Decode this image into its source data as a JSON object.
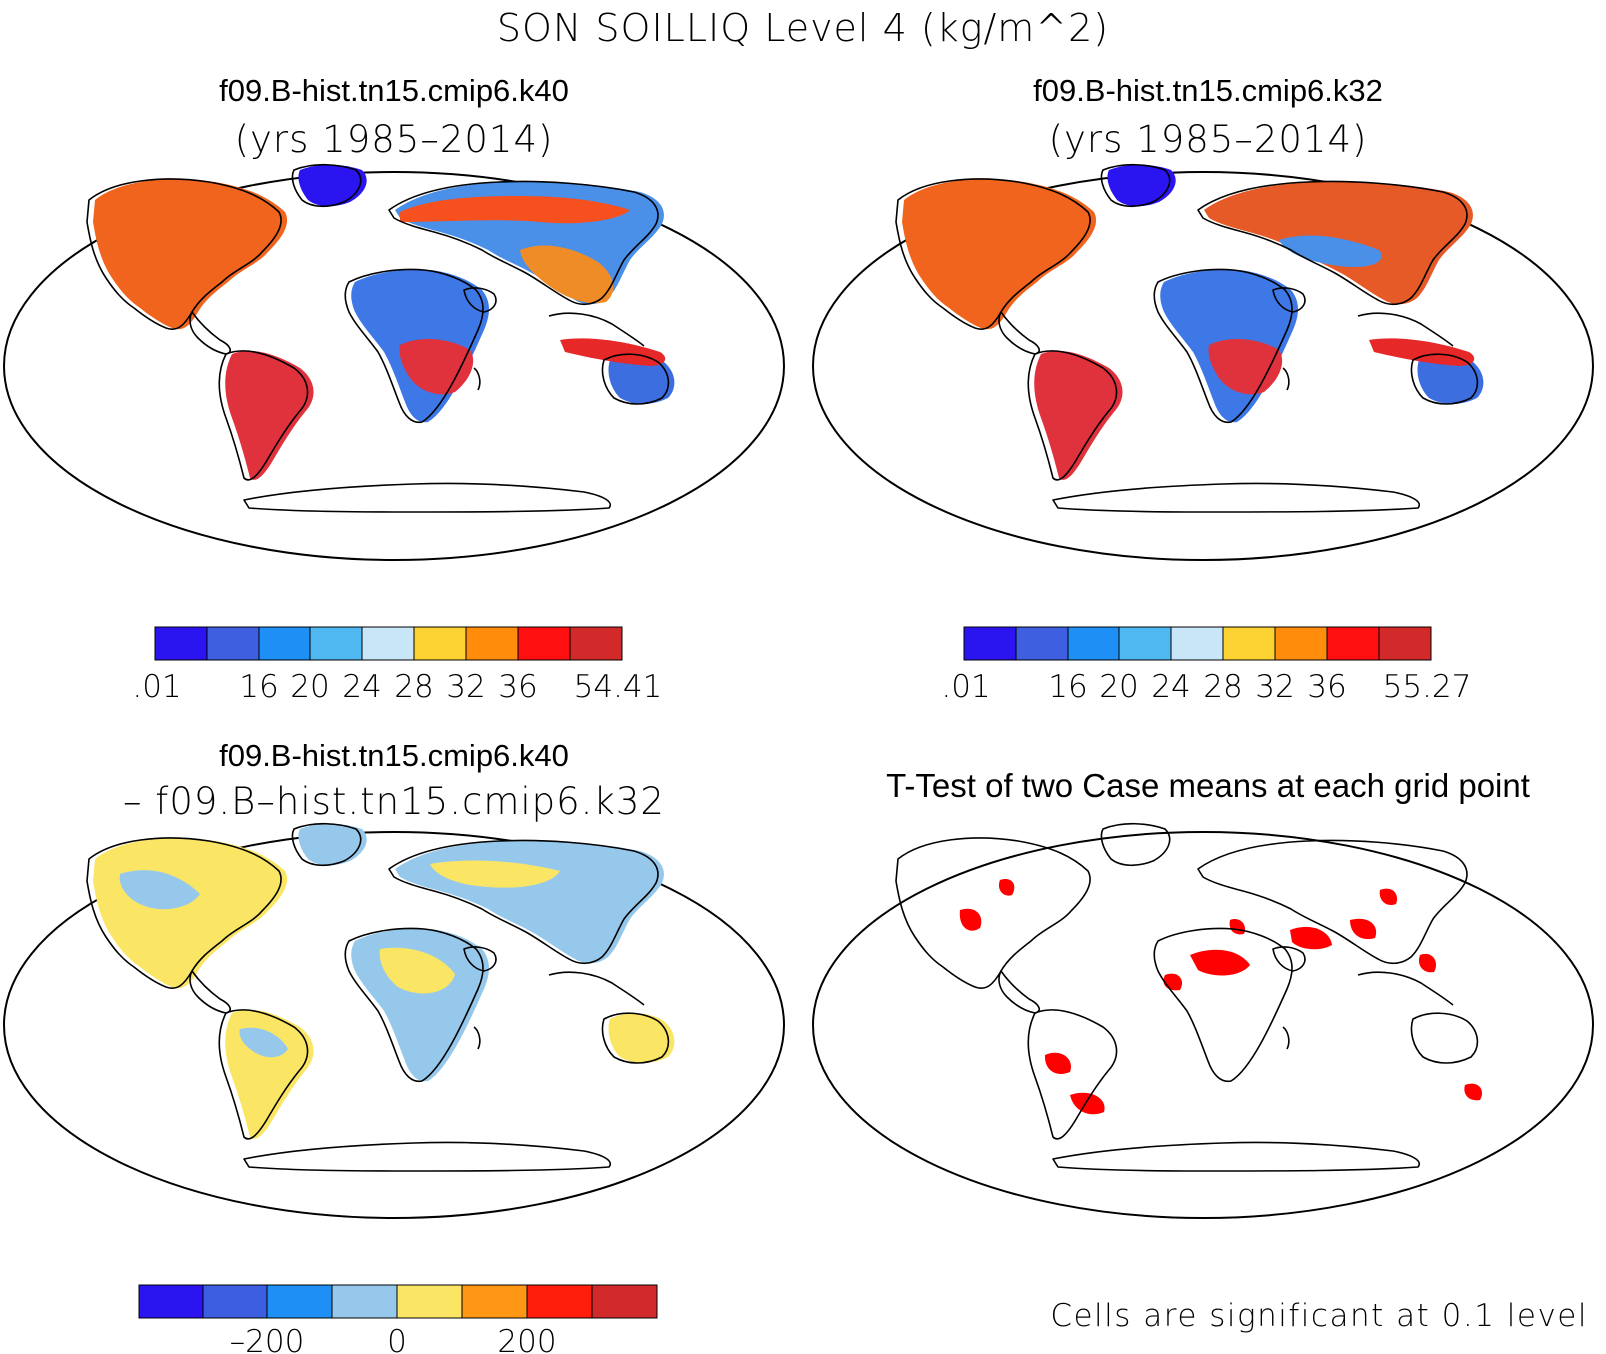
{
  "main_title": "SON SOILLIQ Level 4 (kg/m^2)",
  "panels": {
    "top_left": {
      "case_name": "f09.B-hist.tn15.cmip6.k40",
      "years": "(yrs 1985–2014)",
      "colorbar": {
        "colors": [
          "#2a14f0",
          "#3d5fe0",
          "#1e8ff5",
          "#50b8f0",
          "#c8e6f8",
          "#fcd232",
          "#ff8c0a",
          "#ff0f0f",
          "#d22a2a"
        ],
        "labels": [
          ".01",
          "16",
          "20",
          "24",
          "28",
          "32",
          "36",
          "54.41"
        ]
      }
    },
    "top_right": {
      "case_name": "f09.B-hist.tn15.cmip6.k32",
      "years": "(yrs 1985–2014)",
      "colorbar": {
        "colors": [
          "#2a14f0",
          "#3d5fe0",
          "#1e8ff5",
          "#50b8f0",
          "#c8e6f8",
          "#fcd232",
          "#ff8c0a",
          "#ff0f0f",
          "#d22a2a"
        ],
        "labels": [
          ".01",
          "16",
          "20",
          "24",
          "28",
          "32",
          "36",
          "55.27"
        ]
      }
    },
    "bottom_left": {
      "case_name": "f09.B-hist.tn15.cmip6.k40",
      "minus_line": "– f09.B–hist.tn15.cmip6.k32",
      "colorbar": {
        "colors": [
          "#2a14f0",
          "#3c5ee0",
          "#1e90f5",
          "#96c8ec",
          "#fae664",
          "#ff9614",
          "#ff1e0a",
          "#d22a2a"
        ],
        "labels": [
          "–200",
          "0",
          "200"
        ]
      }
    },
    "bottom_right": {
      "title": "T-Test of two Case means at each grid point",
      "footnote": "Cells are significant at 0.1 level"
    }
  },
  "colors": {
    "land_outline": "#000000",
    "significance": "#ff0000",
    "diff_negative": "#96c8ec",
    "diff_positive": "#fae664"
  }
}
